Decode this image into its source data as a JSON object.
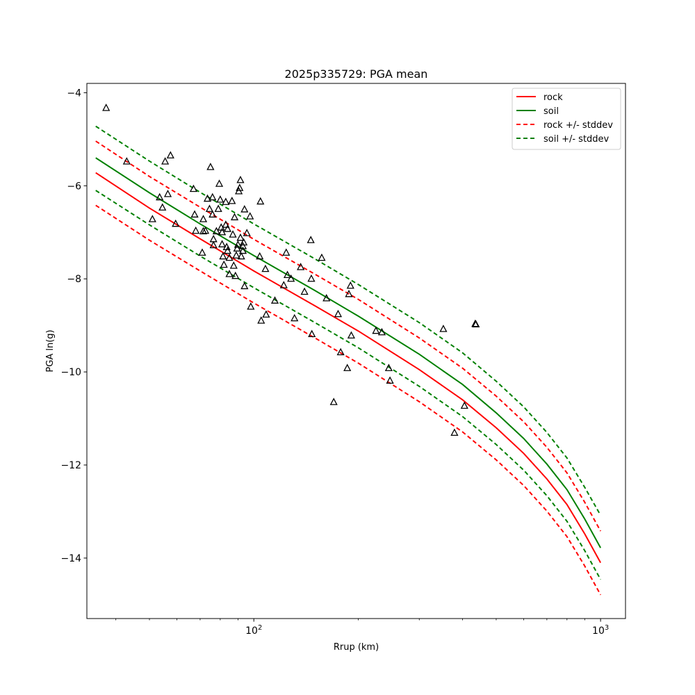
{
  "chart_data": {
    "type": "scatter",
    "title": "2025p335729: PGA mean",
    "xlabel": "Rrup (km)",
    "ylabel": "PGA ln(g)",
    "xscale": "log",
    "xlim": [
      33,
      1180
    ],
    "ylim": [
      -15.3,
      -3.8
    ],
    "x_major_ticks": [
      100,
      1000
    ],
    "x_major_tick_labels": [
      "10^2",
      "10^3"
    ],
    "x_minor_ticks": [
      40,
      50,
      60,
      70,
      80,
      90,
      200,
      300,
      400,
      500,
      600,
      700,
      800,
      900
    ],
    "y_ticks": [
      -14,
      -12,
      -10,
      -8,
      -6,
      -4
    ],
    "y_tick_labels": [
      "−14",
      "−12",
      "−10",
      "−8",
      "−6",
      "−4"
    ],
    "grid": false,
    "legend_position": "top-right",
    "series": [
      {
        "name": "rock",
        "style": "solid",
        "color": "#ff0000",
        "x": [
          35,
          50,
          70,
          100,
          150,
          200,
          300,
          400,
          500,
          600,
          700,
          800,
          900,
          1000
        ],
        "y": [
          -5.72,
          -6.48,
          -7.14,
          -7.83,
          -8.58,
          -9.12,
          -9.95,
          -10.6,
          -11.2,
          -11.75,
          -12.3,
          -12.85,
          -13.48,
          -14.1
        ]
      },
      {
        "name": "soil",
        "style": "solid",
        "color": "#008000",
        "x": [
          35,
          50,
          70,
          100,
          150,
          200,
          300,
          400,
          500,
          600,
          700,
          800,
          900,
          1000
        ],
        "y": [
          -5.4,
          -6.15,
          -6.82,
          -7.5,
          -8.25,
          -8.8,
          -9.62,
          -10.27,
          -10.88,
          -11.43,
          -11.98,
          -12.53,
          -13.16,
          -13.78
        ]
      },
      {
        "name": "rock +/- stddev",
        "style": "dashed",
        "color": "#ff0000",
        "x": [
          35,
          50,
          70,
          100,
          150,
          200,
          300,
          400,
          500,
          600,
          700,
          800,
          900,
          1000
        ],
        "y_upper": [
          -5.04,
          -5.8,
          -6.46,
          -7.15,
          -7.9,
          -8.44,
          -9.27,
          -9.92,
          -10.52,
          -11.07,
          -11.62,
          -12.17,
          -12.8,
          -13.42
        ],
        "y_lower": [
          -6.42,
          -7.17,
          -7.83,
          -8.52,
          -9.27,
          -9.81,
          -10.64,
          -11.29,
          -11.89,
          -12.44,
          -12.99,
          -13.54,
          -14.17,
          -14.79
        ]
      },
      {
        "name": "soil +/- stddev",
        "style": "dashed",
        "color": "#008000",
        "x": [
          35,
          50,
          70,
          100,
          150,
          200,
          300,
          400,
          500,
          600,
          700,
          800,
          900,
          1000
        ],
        "y_upper": [
          -4.72,
          -5.47,
          -6.14,
          -6.82,
          -7.57,
          -8.12,
          -8.94,
          -9.59,
          -10.2,
          -10.75,
          -11.3,
          -11.85,
          -12.48,
          -13.08
        ],
        "y_lower": [
          -6.1,
          -6.84,
          -7.51,
          -8.19,
          -8.94,
          -9.48,
          -10.31,
          -10.96,
          -11.56,
          -12.11,
          -12.66,
          -13.21,
          -13.84,
          -14.46
        ]
      }
    ],
    "observations": {
      "marker": "triangle",
      "points": [
        [
          37.5,
          -4.33
        ],
        [
          43,
          -5.48
        ],
        [
          51,
          -6.72
        ],
        [
          53.5,
          -6.25
        ],
        [
          54.5,
          -6.47
        ],
        [
          55.5,
          -5.48
        ],
        [
          56.5,
          -6.18
        ],
        [
          57.5,
          -5.35
        ],
        [
          59.5,
          -6.82
        ],
        [
          67,
          -6.07
        ],
        [
          67.5,
          -6.62
        ],
        [
          68,
          -6.97
        ],
        [
          71.5,
          -6.72
        ],
        [
          71.5,
          -6.98
        ],
        [
          71,
          -7.44
        ],
        [
          72.5,
          -6.97
        ],
        [
          73.5,
          -6.28
        ],
        [
          74.5,
          -6.5
        ],
        [
          75,
          -5.6
        ],
        [
          76,
          -6.25
        ],
        [
          76,
          -6.62
        ],
        [
          76.5,
          -7.15
        ],
        [
          76.5,
          -7.28
        ],
        [
          78,
          -6.98
        ],
        [
          79,
          -6.5
        ],
        [
          79.5,
          -5.96
        ],
        [
          80,
          -6.3
        ],
        [
          80.5,
          -6.9
        ],
        [
          81,
          -7.0
        ],
        [
          81,
          -7.26
        ],
        [
          81.5,
          -7.52
        ],
        [
          82,
          -7.7
        ],
        [
          83,
          -6.84
        ],
        [
          83,
          -6.35
        ],
        [
          83.5,
          -7.32
        ],
        [
          84,
          -7.4
        ],
        [
          84,
          -6.93
        ],
        [
          85,
          -7.9
        ],
        [
          85,
          -7.55
        ],
        [
          86.5,
          -6.33
        ],
        [
          87,
          -7.05
        ],
        [
          87.5,
          -7.72
        ],
        [
          88,
          -6.68
        ],
        [
          88.5,
          -7.94
        ],
        [
          89,
          -7.5
        ],
        [
          89.5,
          -7.35
        ],
        [
          90,
          -7.27
        ],
        [
          90.5,
          -6.12
        ],
        [
          91,
          -6.05
        ],
        [
          91.5,
          -5.88
        ],
        [
          91.5,
          -7.12
        ],
        [
          92,
          -7.52
        ],
        [
          93,
          -7.3
        ],
        [
          93,
          -7.4
        ],
        [
          93.5,
          -7.22
        ],
        [
          94,
          -6.51
        ],
        [
          94,
          -8.16
        ],
        [
          95.5,
          -7.02
        ],
        [
          97.5,
          -6.66
        ],
        [
          98,
          -8.6
        ],
        [
          104,
          -7.52
        ],
        [
          104.5,
          -6.34
        ],
        [
          105,
          -8.9
        ],
        [
          108,
          -7.79
        ],
        [
          108.5,
          -8.77
        ],
        [
          115,
          -8.47
        ],
        [
          122,
          -8.14
        ],
        [
          124,
          -7.44
        ],
        [
          125,
          -7.92
        ],
        [
          128,
          -8.0
        ],
        [
          131,
          -8.85
        ],
        [
          136.5,
          -7.75
        ],
        [
          140,
          -8.28
        ],
        [
          146,
          -7.17
        ],
        [
          146.5,
          -8.0
        ],
        [
          147,
          -9.19
        ],
        [
          157,
          -7.55
        ],
        [
          162,
          -8.42
        ],
        [
          170,
          -10.65
        ],
        [
          175,
          -8.76
        ],
        [
          178,
          -9.58
        ],
        [
          186,
          -9.92
        ],
        [
          188,
          -8.33
        ],
        [
          190,
          -8.15
        ],
        [
          191,
          -9.22
        ],
        [
          225,
          -9.12
        ],
        [
          234,
          -9.15
        ],
        [
          245,
          -9.92
        ],
        [
          247,
          -10.19
        ],
        [
          352,
          -9.08
        ],
        [
          379,
          -11.31
        ],
        [
          405,
          -10.73
        ],
        [
          435,
          -8.97
        ],
        [
          437,
          -8.98
        ]
      ]
    }
  }
}
